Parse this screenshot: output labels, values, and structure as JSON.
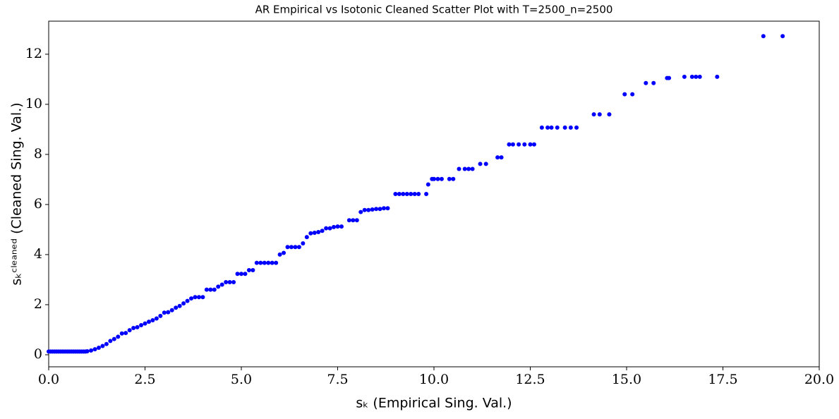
{
  "chart_data": {
    "type": "scatter",
    "title": "AR Empirical vs Isotonic Cleaned Scatter Plot with T=2500_n=2500",
    "x_label": "sₖ (Empirical Sing. Val.)",
    "y_label": "sₖᶜˡᵉᵃⁿᵉᵈ (Cleaned Sing. Val.)",
    "color": "#0000ff",
    "xlim": [
      0,
      20
    ],
    "ylim": [
      -0.48,
      13.32
    ],
    "xticks": [
      {
        "value": 0,
        "label": "0.0"
      },
      2.5,
      {
        "value": 5,
        "label": "5.0"
      },
      7.5,
      {
        "value": 10,
        "label": "10.0"
      },
      12.5,
      {
        "value": 15,
        "label": "15.0"
      },
      17.5,
      {
        "value": 20,
        "label": "20.0"
      }
    ],
    "yticks": [
      0,
      2,
      4,
      6,
      8,
      10,
      12
    ],
    "series": [
      {
        "name": "points",
        "x": [
          0,
          0.05,
          0.1,
          0.15,
          0.2,
          0.25,
          0.3,
          0.35,
          0.4,
          0.45,
          0.5,
          0.55,
          0.6,
          0.65,
          0.7,
          0.75,
          0.8,
          0.85,
          0.9,
          0.95,
          1.0,
          1.1,
          1.2,
          1.3,
          1.4,
          1.5,
          1.6,
          1.7,
          1.8,
          1.9,
          2.0,
          2.1,
          2.2,
          2.3,
          2.4,
          2.5,
          2.6,
          2.7,
          2.8,
          2.9,
          3.0,
          3.1,
          3.2,
          3.3,
          3.4,
          3.5,
          3.6,
          3.7,
          3.8,
          3.9,
          4.0,
          4.1,
          4.2,
          4.3,
          4.4,
          4.5,
          4.6,
          4.7,
          4.8,
          4.9,
          5.0,
          5.1,
          5.2,
          5.3,
          5.4,
          5.5,
          5.6,
          5.7,
          5.8,
          5.9,
          6.0,
          6.1,
          6.2,
          6.3,
          6.4,
          6.5,
          6.6,
          6.7,
          6.8,
          6.9,
          7.0,
          7.1,
          7.2,
          7.3,
          7.4,
          7.5,
          7.6,
          7.8,
          7.9,
          8.0,
          8.1,
          8.2,
          8.3,
          8.4,
          8.5,
          8.6,
          8.7,
          8.8,
          9.0,
          9.1,
          9.2,
          9.3,
          9.4,
          9.5,
          9.6,
          9.8,
          9.85,
          9.95,
          10.0,
          10.1,
          10.2,
          10.4,
          10.5,
          10.65,
          10.8,
          10.9,
          11.0,
          11.2,
          11.35,
          11.65,
          11.75,
          11.95,
          12.05,
          12.2,
          12.35,
          12.5,
          12.6,
          12.8,
          12.95,
          13.05,
          13.2,
          13.4,
          13.55,
          13.7,
          14.15,
          14.3,
          14.55,
          14.95,
          15.15,
          15.5,
          15.7,
          16.05,
          16.1,
          16.5,
          16.7,
          16.8,
          16.9,
          17.35,
          18.55,
          19.05
        ],
        "values": [
          0.13,
          0.13,
          0.13,
          0.13,
          0.13,
          0.13,
          0.13,
          0.13,
          0.13,
          0.13,
          0.13,
          0.13,
          0.13,
          0.13,
          0.13,
          0.13,
          0.13,
          0.13,
          0.13,
          0.13,
          0.14,
          0.17,
          0.22,
          0.28,
          0.35,
          0.43,
          0.55,
          0.63,
          0.72,
          0.85,
          0.87,
          0.98,
          1.07,
          1.1,
          1.18,
          1.25,
          1.32,
          1.38,
          1.45,
          1.55,
          1.68,
          1.7,
          1.78,
          1.88,
          1.95,
          2.05,
          2.15,
          2.25,
          2.3,
          2.3,
          2.3,
          2.6,
          2.6,
          2.6,
          2.72,
          2.8,
          2.9,
          2.9,
          2.9,
          3.23,
          3.23,
          3.23,
          3.38,
          3.38,
          3.67,
          3.67,
          3.67,
          3.67,
          3.67,
          3.67,
          4.0,
          4.07,
          4.3,
          4.3,
          4.3,
          4.3,
          4.45,
          4.7,
          4.85,
          4.87,
          4.9,
          4.95,
          5.05,
          5.05,
          5.1,
          5.12,
          5.12,
          5.37,
          5.37,
          5.37,
          5.7,
          5.78,
          5.78,
          5.8,
          5.82,
          5.82,
          5.85,
          5.85,
          6.42,
          6.42,
          6.42,
          6.42,
          6.42,
          6.42,
          6.42,
          6.42,
          6.8,
          7.02,
          7.02,
          7.02,
          7.02,
          7.02,
          7.02,
          7.42,
          7.42,
          7.42,
          7.42,
          7.62,
          7.62,
          7.88,
          7.88,
          8.4,
          8.4,
          8.4,
          8.4,
          8.4,
          8.4,
          9.07,
          9.07,
          9.07,
          9.07,
          9.07,
          9.07,
          9.07,
          9.6,
          9.6,
          9.6,
          10.4,
          10.4,
          10.85,
          10.85,
          11.05,
          11.05,
          11.1,
          11.1,
          11.1,
          11.1,
          11.1,
          12.72,
          12.72
        ]
      }
    ]
  }
}
